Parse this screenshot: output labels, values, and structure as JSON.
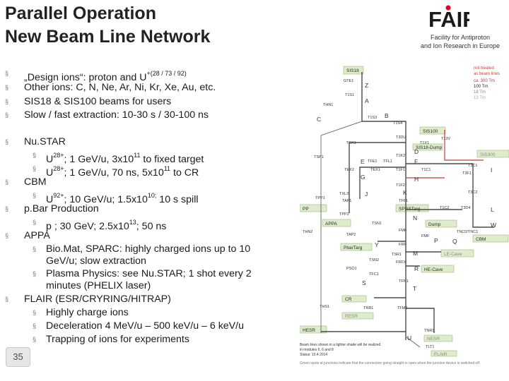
{
  "title": {
    "line1": "Parallel Operation",
    "line2": "New Beam Line Network"
  },
  "logo": {
    "text": "FAIR",
    "caption1": "Facility for Antiproton",
    "caption2": "and Ion Research in Europe"
  },
  "bullets": {
    "b1_a": "„Design ions“: proton and U",
    "b1_sup": "+(28 / 73 / 92)",
    "b2": "Other ions: C, N, Ne, Ar, Ni, Kr, Xe, Au, etc.",
    "b3": "SIS18 & SIS100 beams for users",
    "b4": "Slow / fast extraction: 10-30 s / 30-100 ns",
    "b5": "Nu.STAR",
    "s1_a": "U",
    "s1_sup": "28+",
    "s1_b": "; 1 GeV/u, 3x10",
    "s1_sup2": "11",
    "s1_c": " to fixed target",
    "s2_a": "U",
    "s2_sup": "28+",
    "s2_b": "; 1 GeV/u, 70 ns, 5x10",
    "s2_sup2": "11",
    "s2_c": " to CR",
    "b6": "CBM",
    "s3_a": "U",
    "s3_sup": "92+",
    "s3_b": "; 10 GeV/u; 1.5x10",
    "s3_sup2": "10;",
    "s3_c": " 10 s spill",
    "b7": "p.Bar Production",
    "s4_a": "p ; 30 GeV; 2.5x10",
    "s4_sup": "13",
    "s4_b": "; 50 ns",
    "b8": "APPA",
    "s5_l1": "Bio.Mat, SPARC: highly charged ions up to 10",
    "s5_l2": "GeV/u; slow extraction",
    "s6_l1": "Plasma Physics: see Nu.STAR; 1 shot every 2",
    "s6_l2": "minutes (PHELIX laser)",
    "b9": "FLAIR (ESR/CRYRING/HITRAP)",
    "s7": "Highly charge ions",
    "s8": "Deceleration 4 MeV/u – 500 keV/u – 6 keV/u",
    "s9": "Trapping of ions for experiments",
    "marker": "§"
  },
  "page_number": "35",
  "diagram": {
    "legend": {
      "l1": "not treated",
      "l2": "as beam lines",
      "l3": "ca. 300 Tm",
      "l4": "100 Tm",
      "l5": "18 Tm",
      "l6": "13 Tm"
    },
    "boxes": {
      "sis18": "SIS18",
      "sis100": "SIS100",
      "sis18dump": "SIS18-Dump",
      "sis300": "SIS300",
      "pp": "PP",
      "appa": "APPA",
      "sprstarg": "SPRSTarg",
      "dump": "Dump",
      "cbm": "CBM",
      "pbartarg": "PbarTarg",
      "lecave": "LE-Cave",
      "hecave": "HE-Cave",
      "cr": "CR",
      "resr": "RESR",
      "hesr": "HESR",
      "nesr": "NESR",
      "flair": "FLAIR"
    },
    "letters": {
      "z": "Z",
      "a": "A",
      "b": "B",
      "c": "C",
      "d": "D",
      "e": "E",
      "f": "F",
      "g": "G",
      "h": "H",
      "i": "I",
      "j": "J",
      "k": "K",
      "l": "L",
      "n": "N",
      "w": "W",
      "p": "P",
      "q": "Q",
      "m": "M",
      "r": "R",
      "s": "S",
      "t": "T",
      "u": "U",
      "x": "X",
      "y": "Y"
    },
    "nodes": {
      "gte1": "GTE1",
      "t1s1": "T1S1",
      "thn1": "THN1",
      "t1s3": "T1S3",
      "t1s4": "T1S4",
      "t3du": "T3DU",
      "tsx1": "TSX1",
      "t1x1": "T1X1",
      "t1k2": "T1K2",
      "t13v": "T13V",
      "tsp1": "TSP1",
      "tfe1": "TFE1",
      "tfl1": "TFL1",
      "t3c1": "T3C1",
      "t3f1": "T3F1",
      "tex2": "TEX2",
      "tex1": "TEX1",
      "t1f1": "T1F1",
      "t1c1": "T1C1",
      "t1f2": "T1F2",
      "t3c2": "T3C2",
      "txl3": "TXL3",
      "tpp1": "TPP1",
      "tap1": "TAP1",
      "tff1": "TFF1",
      "t1c2": "T1C2",
      "t3d4": "T3D4",
      "tpp2": "TPP2",
      "tsn1": "TSN1",
      "tnc": "TNC0/TNC1",
      "thn2": "THN2",
      "tap2": "TAP2",
      "fmf": "FMF",
      "fmf2": "FMF",
      "frf": "FRF",
      "tsr1": "TSR1",
      "tsn2": "TSN2",
      "frfx": "FRFX",
      "pso1": "PSO1",
      "tfc1": "TFC1",
      "tfn1": "TFN1",
      "ths1": "THS1",
      "trr1": "TRR1",
      "tfm2": "TFM2",
      "tnr1": "TNR1",
      "tlt1": "TLT1"
    },
    "note1": "Beam lines shown in a lighter shade will be realized",
    "note2": "in modules 6, 6 and 8",
    "note3": "Status: 10.4.2014",
    "footnote": "Green spots at junctions indicate that the connection going straight is open when the junction device is switched off."
  }
}
